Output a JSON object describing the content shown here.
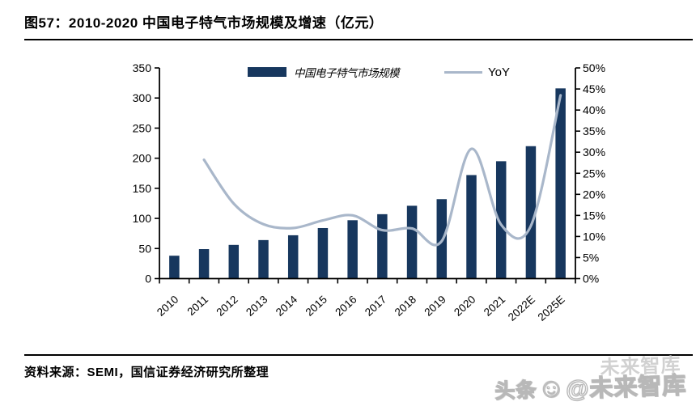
{
  "page": {
    "title": "图57：2010-2020 中国电子特气市场规模及增速（亿元）",
    "source": "资料来源：SEMI，国信证券经济研究所整理",
    "watermark": {
      "prefix": "头条",
      "smiley": "☺",
      "handle": "@未来智库",
      "ghost": "未来智库"
    }
  },
  "legend": {
    "bar_label": "中国电子特气市场规模",
    "line_label": "YoY"
  },
  "colors": {
    "bar": "#17375E",
    "line": "#A9B7CA",
    "axis": "#000000"
  },
  "chart_data": {
    "type": "bar",
    "subtype": "bar+line-combo",
    "categories": [
      "2010",
      "2011",
      "2012",
      "2013",
      "2014",
      "2015",
      "2016",
      "2017",
      "2018",
      "2019",
      "2020",
      "2021",
      "2022E",
      "2025E"
    ],
    "series": [
      {
        "name": "中国电子特气市场规模",
        "type": "bar",
        "axis": "left",
        "values": [
          38,
          49,
          56,
          64,
          72,
          84,
          97,
          107,
          121,
          132,
          172,
          195,
          220,
          316
        ]
      },
      {
        "name": "YoY",
        "type": "line",
        "axis": "right",
        "values": [
          null,
          28.2,
          17.8,
          12.9,
          12.0,
          13.8,
          15.0,
          11.5,
          11.9,
          8.9,
          30.8,
          12.8,
          12.5,
          43.5
        ]
      }
    ],
    "left_axis": {
      "min": 0,
      "max": 350,
      "step": 50,
      "ticks": [
        0,
        50,
        100,
        150,
        200,
        250,
        300,
        350
      ]
    },
    "right_axis": {
      "min": 0,
      "max": 50,
      "step": 5,
      "suffix": "%",
      "ticks": [
        "0%",
        "5%",
        "10%",
        "15%",
        "20%",
        "25%",
        "30%",
        "35%",
        "40%",
        "45%",
        "50%"
      ]
    },
    "grid": false,
    "legend_position": "top-center-inside"
  }
}
